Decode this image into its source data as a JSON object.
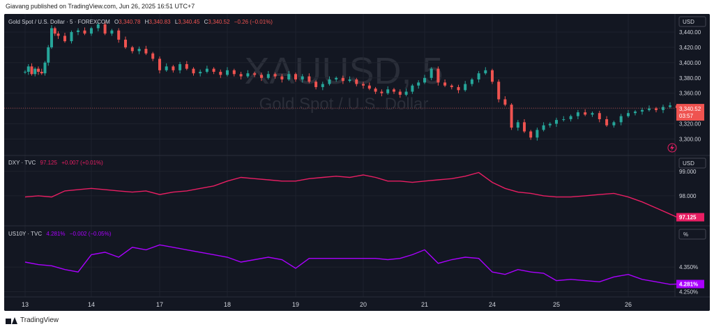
{
  "caption": "Giavang published on TradingView.com, Jun 26, 2025 16:51 UTC+7",
  "watermark": {
    "symbol": "XAUUSD, 5",
    "description": "Gold Spot / U.S. Dollar"
  },
  "footer": {
    "brand": "TradingView"
  },
  "panes": {
    "gold": {
      "legend_title": "Gold Spot / U.S. Dollar · 5 · FOREXCOM",
      "ohlc": {
        "O": "3,340.78",
        "H": "3,340.83",
        "L": "3,340.45",
        "C": "3,340.52",
        "change": "−0.26 (−0.01%)"
      },
      "scale_label": "USD",
      "price_badge": "3,340.52",
      "countdown": "03:57"
    },
    "dxy": {
      "legend_title": "DXY · TVC",
      "last": "97.125",
      "change": "+0.007 (+0.01%)",
      "scale_label": "USD",
      "price_badge": "97.125"
    },
    "us10y": {
      "legend_title": "US10Y · TVC",
      "last": "4.281%",
      "change": "−0.002 (−0.05%)",
      "scale_label": "%",
      "price_badge": "4.281%"
    }
  },
  "colors": {
    "background": "#131722",
    "up": "#26a69a",
    "down": "#ef5350",
    "dxy": "#e91e63",
    "us10y": "#aa00ff",
    "text": "#d1d4dc"
  },
  "chart_data": [
    {
      "type": "candlestick",
      "name": "Gold Spot / U.S. Dollar",
      "ylim": [
        3285,
        3460
      ],
      "y_ticks": [
        "3,300.00",
        "3,320.00",
        "3,340.00",
        "3,360.00",
        "3,380.00",
        "3,400.00",
        "3,420.00",
        "3,440.00"
      ],
      "x_ticks": [
        "13",
        "14",
        "17",
        "18",
        "19",
        "20",
        "21",
        "24",
        "25",
        "26"
      ],
      "x": [
        13.0,
        13.05,
        13.1,
        13.15,
        13.2,
        13.25,
        13.3,
        13.35,
        13.4,
        13.45,
        13.5,
        13.6,
        13.7,
        13.8,
        13.9,
        14.0,
        14.1,
        14.2,
        14.3,
        14.4,
        14.5,
        14.6,
        14.7,
        14.8,
        14.9,
        17.0,
        17.1,
        17.2,
        17.3,
        17.4,
        17.5,
        17.6,
        17.7,
        17.8,
        17.9,
        18.0,
        18.1,
        18.2,
        18.3,
        18.4,
        18.5,
        18.6,
        18.7,
        18.8,
        18.9,
        19.0,
        19.1,
        19.2,
        19.3,
        19.4,
        19.5,
        19.6,
        19.7,
        19.8,
        19.9,
        20.0,
        20.1,
        20.2,
        20.3,
        20.4,
        20.5,
        20.6,
        20.7,
        20.8,
        20.9,
        21.0,
        21.1,
        21.2,
        21.3,
        21.4,
        21.5,
        21.6,
        21.7,
        21.8,
        21.9,
        24.0,
        24.1,
        24.2,
        24.3,
        24.4,
        24.5,
        24.6,
        24.7,
        24.8,
        24.9,
        25.0,
        25.1,
        25.2,
        25.3,
        25.4,
        25.5,
        25.6,
        25.7,
        25.8,
        25.9,
        26.0,
        26.1,
        26.2,
        26.3,
        26.4,
        26.5,
        26.6,
        26.7
      ],
      "close": [
        3388,
        3395,
        3385,
        3392,
        3388,
        3386,
        3400,
        3420,
        3445,
        3438,
        3435,
        3428,
        3440,
        3442,
        3438,
        3445,
        3450,
        3438,
        3442,
        3430,
        3420,
        3415,
        3418,
        3412,
        3405,
        3390,
        3395,
        3390,
        3398,
        3392,
        3386,
        3388,
        3392,
        3388,
        3384,
        3390,
        3385,
        3382,
        3386,
        3384,
        3380,
        3385,
        3382,
        3378,
        3385,
        3378,
        3382,
        3375,
        3368,
        3372,
        3378,
        3380,
        3376,
        3378,
        3372,
        3370,
        3366,
        3362,
        3360,
        3365,
        3362,
        3358,
        3362,
        3370,
        3374,
        3380,
        3392,
        3374,
        3370,
        3368,
        3364,
        3372,
        3378,
        3386,
        3390,
        3375,
        3352,
        3345,
        3315,
        3322,
        3310,
        3302,
        3312,
        3318,
        3320,
        3325,
        3326,
        3330,
        3335,
        3332,
        3334,
        3326,
        3318,
        3322,
        3330,
        3334,
        3336,
        3338,
        3340,
        3338,
        3342,
        3344,
        3340.52
      ]
    },
    {
      "type": "line",
      "name": "DXY · TVC",
      "ylim": [
        97.0,
        99.05
      ],
      "y_ticks": [
        "98.000",
        "99.000"
      ],
      "x": [
        13.0,
        13.2,
        13.4,
        13.6,
        13.8,
        14.0,
        14.2,
        14.4,
        14.6,
        14.8,
        17.0,
        17.2,
        17.4,
        17.6,
        17.8,
        18.0,
        18.2,
        18.4,
        18.6,
        18.8,
        19.0,
        19.2,
        19.4,
        19.6,
        19.8,
        20.0,
        20.2,
        20.4,
        20.6,
        20.8,
        21.0,
        21.2,
        21.4,
        21.6,
        21.8,
        24.0,
        24.2,
        24.4,
        24.6,
        24.8,
        25.0,
        25.2,
        25.4,
        25.6,
        25.8,
        26.0,
        26.2,
        26.4,
        26.6,
        26.7
      ],
      "values": [
        97.95,
        98.0,
        97.95,
        98.2,
        98.25,
        98.3,
        98.25,
        98.2,
        98.15,
        98.2,
        98.05,
        98.15,
        98.2,
        98.3,
        98.4,
        98.6,
        98.75,
        98.7,
        98.65,
        98.6,
        98.6,
        98.7,
        98.75,
        98.8,
        98.75,
        98.85,
        98.75,
        98.6,
        98.6,
        98.55,
        98.6,
        98.65,
        98.7,
        98.8,
        98.95,
        98.55,
        98.3,
        98.15,
        98.1,
        98.0,
        97.95,
        97.95,
        98.0,
        98.05,
        98.1,
        97.95,
        97.75,
        97.5,
        97.25,
        97.125
      ]
    },
    {
      "type": "line",
      "name": "US10Y · TVC",
      "ylim": [
        4.24,
        4.455
      ],
      "y_ticks": [
        "4.250%",
        "4.350%"
      ],
      "x": [
        13.0,
        13.2,
        13.4,
        13.6,
        13.8,
        14.0,
        14.2,
        14.4,
        14.6,
        14.8,
        17.0,
        17.2,
        17.4,
        17.6,
        17.8,
        18.0,
        18.2,
        18.4,
        18.6,
        18.8,
        19.0,
        19.2,
        19.4,
        19.6,
        19.8,
        20.0,
        20.2,
        20.4,
        20.6,
        20.8,
        21.0,
        21.2,
        21.4,
        21.6,
        21.8,
        24.0,
        24.2,
        24.4,
        24.6,
        24.8,
        25.0,
        25.2,
        25.4,
        25.6,
        25.8,
        26.0,
        26.2,
        26.4,
        26.6,
        26.7
      ],
      "values": [
        4.37,
        4.36,
        4.355,
        4.34,
        4.33,
        4.4,
        4.41,
        4.39,
        4.43,
        4.42,
        4.44,
        4.43,
        4.42,
        4.41,
        4.4,
        4.39,
        4.37,
        4.38,
        4.39,
        4.38,
        4.345,
        4.385,
        4.385,
        4.385,
        4.385,
        4.385,
        4.385,
        4.38,
        4.385,
        4.4,
        4.42,
        4.365,
        4.38,
        4.39,
        4.385,
        4.33,
        4.32,
        4.34,
        4.33,
        4.325,
        4.295,
        4.3,
        4.295,
        4.29,
        4.31,
        4.32,
        4.3,
        4.29,
        4.28,
        4.281
      ]
    }
  ]
}
